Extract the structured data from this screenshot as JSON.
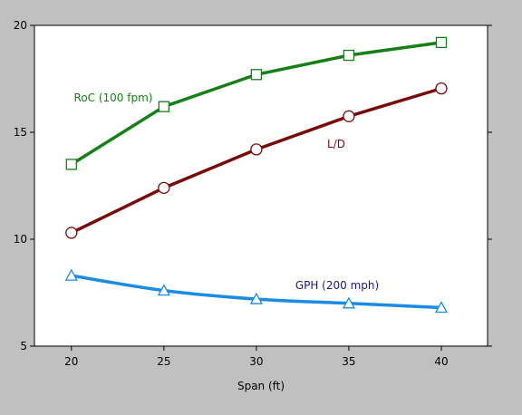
{
  "chart_data": {
    "type": "line",
    "title": "",
    "xlabel": "Span (ft)",
    "ylabel": "",
    "xlim": [
      18,
      42.5
    ],
    "ylim": [
      5,
      20
    ],
    "xticks": [
      20,
      25,
      30,
      35,
      40
    ],
    "yticks": [
      5,
      10,
      15,
      20
    ],
    "grid": false,
    "x": [
      20,
      25,
      30,
      35,
      40
    ],
    "series": [
      {
        "name": "RoC (100 fpm)",
        "values": [
          13.5,
          16.2,
          17.7,
          18.6,
          19.2
        ],
        "color": "#158015",
        "marker": "square",
        "smooth": false
      },
      {
        "name": "L/D",
        "values": [
          10.3,
          12.4,
          14.2,
          15.75,
          17.05
        ],
        "color": "#7A0A0A",
        "marker": "circle",
        "smooth": false
      },
      {
        "name": "GPH (200 mph)",
        "values": [
          8.3,
          7.6,
          7.2,
          7.0,
          6.8
        ],
        "color": "#1A8CE6",
        "marker": "triangle",
        "smooth": true
      }
    ],
    "annotations": [
      {
        "text": "RoC (100 fpm)",
        "series": 0,
        "color": "#158015"
      },
      {
        "text": "L/D",
        "series": 1,
        "color": "#8B0A0A"
      },
      {
        "text": "GPH (200 mph)",
        "series": 2,
        "color": "#1A1A80"
      }
    ]
  }
}
